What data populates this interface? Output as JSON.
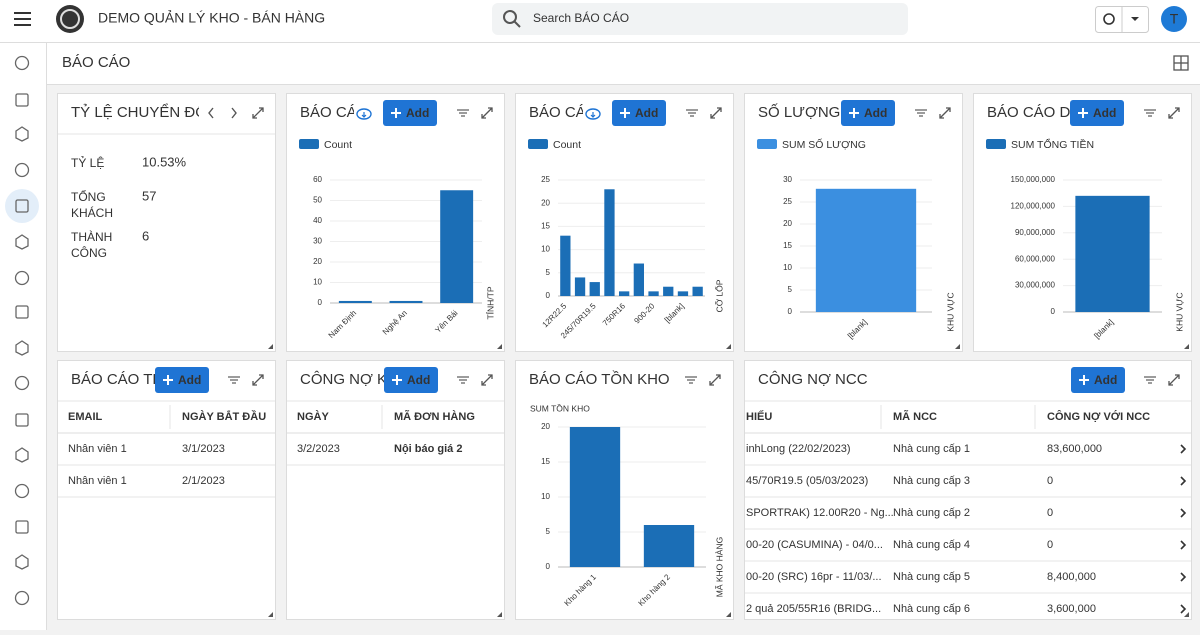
{
  "app_title": "DEMO QUẢN LÝ KHO - BÁN HÀNG",
  "search_placeholder": "Search BÁO CÁO",
  "avatar": "T",
  "page_title": "BÁO CÁO",
  "add_label": "Add",
  "conversion": {
    "title": "TỶ LỆ CHUYỂN ĐỔI",
    "rows": [
      {
        "label": "TỶ LỆ",
        "value": "10.53%"
      },
      {
        "label": "TỔNG KHÁCH",
        "value": "57"
      },
      {
        "label": "THÀNH CÔNG",
        "value": "6"
      }
    ]
  },
  "tables": [
    {
      "title": "BÁO CÁO TH",
      "columns": [
        "EMAIL",
        "NGÀY BẮT ĐẦU"
      ],
      "rows": [
        [
          "Nhân viên 1",
          "3/1/2023"
        ],
        [
          "Nhân viên 1",
          "2/1/2023"
        ]
      ]
    },
    {
      "title": "CÔNG NỢ KH",
      "columns": [
        "NGÀY",
        "MÃ ĐƠN HÀNG"
      ],
      "rows": [
        [
          "3/2/2023",
          "Nội báo giá 2"
        ]
      ]
    },
    {
      "title": "CÔNG NỢ NCC",
      "columns": [
        "HIẾU",
        "MÃ NCC",
        "CÔNG NỢ VỚI NCC"
      ],
      "rows": [
        [
          "inhLong (22/02/2023)",
          "Nhà cung cấp 1",
          "83,600,000"
        ],
        [
          "45/70R19.5 (05/03/2023)",
          "Nhà cung cấp 3",
          "0"
        ],
        [
          "SPORTRAK) 12.00R20 - Ng...",
          "Nhà cung cấp 2",
          "0"
        ],
        [
          "00-20 (CASUMINA) - 04/0...",
          "Nhà cung cấp 4",
          "0"
        ],
        [
          "00-20 (SRC) 16pr - 11/03/...",
          "Nhà cung cấp 5",
          "8,400,000"
        ],
        [
          "2 quả 205/55R16 (BRIDG...",
          "Nhà cung cấp 6",
          "3,600,000"
        ]
      ]
    }
  ],
  "chart_data": [
    {
      "type": "bar",
      "title": "BÁO CÁ",
      "legend": "top-left",
      "grid": true,
      "x_label": "TỈNH/TP",
      "categories": [
        "Nam Định",
        "Nghệ An",
        "Yên Bái"
      ],
      "series": [
        {
          "name": "Count",
          "color": "#1b6eb6",
          "values": [
            1,
            1,
            55
          ]
        }
      ],
      "ylim": [
        0,
        60
      ],
      "yticks": [
        0,
        10,
        20,
        30,
        40,
        50,
        60
      ]
    },
    {
      "type": "bar",
      "title": "BÁO CÁ",
      "legend": "top-left",
      "grid": true,
      "x_label": "CỠ LỐP",
      "categories": [
        "12R22.5",
        null,
        "245/70R19.5",
        null,
        "750R16",
        null,
        "900-20",
        null,
        "[blank]",
        null
      ],
      "series": [
        {
          "name": "Count",
          "color": "#1b6eb6",
          "values": [
            13,
            4,
            3,
            23,
            1,
            7,
            1,
            2,
            1,
            2
          ]
        }
      ],
      "ylim": [
        0,
        25
      ],
      "yticks": [
        0,
        5,
        10,
        15,
        20,
        25
      ]
    },
    {
      "type": "bar",
      "title": "SỐ LƯỢNG B",
      "legend": "top-left",
      "grid": true,
      "x_label": "KHU VỰC",
      "categories": [
        "[blank]"
      ],
      "series": [
        {
          "name": "SUM SỐ LƯỢNG",
          "color": "#3b8fe0",
          "values": [
            28
          ]
        }
      ],
      "ylim": [
        0,
        30
      ],
      "yticks": [
        0,
        5,
        10,
        15,
        20,
        25,
        30
      ]
    },
    {
      "type": "bar",
      "title": "BÁO CÁO DO",
      "legend": "top-left",
      "grid": true,
      "x_label": "KHU VỰC",
      "categories": [
        "[blank]"
      ],
      "series": [
        {
          "name": "SUM TỔNG TIỀN",
          "color": "#1b6eb6",
          "values": [
            132000000
          ]
        }
      ],
      "ylim": [
        0,
        150000000
      ],
      "yticks": [
        0,
        {
          "value": 30000000,
          "label": "30,000,000"
        },
        {
          "value": 60000000,
          "label": "60,000,000"
        },
        {
          "value": 90000000,
          "label": "90,000,000"
        },
        {
          "value": 120000000,
          "label": "120,000,000"
        },
        {
          "value": 150000000,
          "label": "150,000,000"
        }
      ]
    },
    {
      "type": "bar",
      "title": "BÁO CÁO TỒN KHO",
      "grid": true,
      "x_label": "MÃ KHO HÀNG",
      "y_label": "SUM TỒN KHO",
      "categories": [
        "Kho hàng 1",
        "Kho hàng 2"
      ],
      "color": "#1b6eb6",
      "values": [
        20,
        6
      ],
      "ylim": [
        0,
        20
      ],
      "yticks": [
        0,
        5,
        10,
        15,
        20
      ]
    }
  ]
}
